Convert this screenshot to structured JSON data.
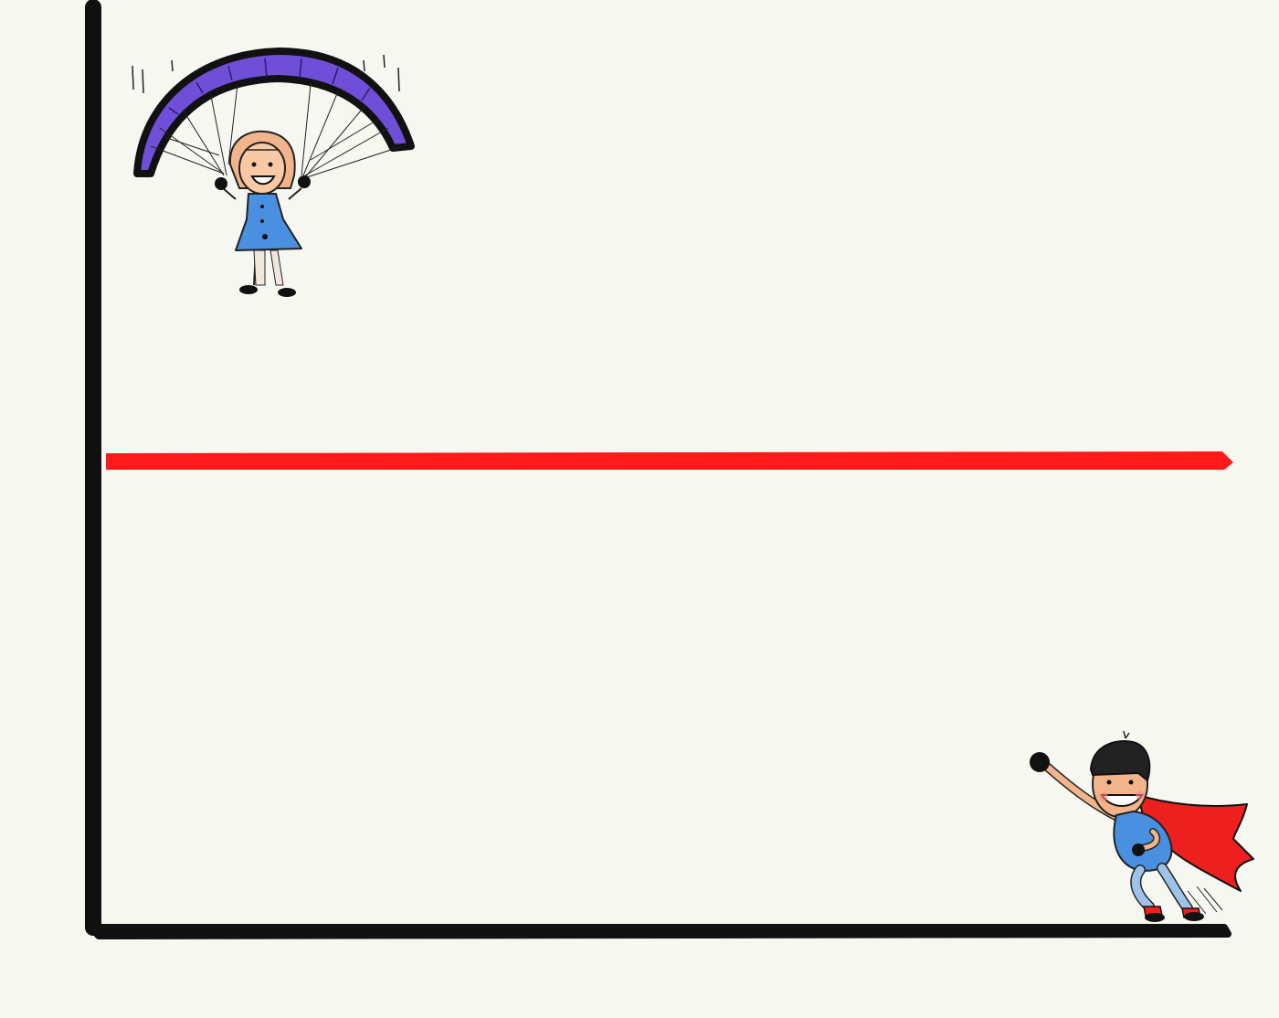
{
  "colors": {
    "background": "#f7f7f2",
    "axis": "#111111",
    "threshold_line": "#ff1a1a",
    "canopy": "#6f4fd8",
    "dress": "#4a90e0",
    "skin": "#f2b48a",
    "cape": "#ee1f1f",
    "hero_suit": "#4a90e0"
  },
  "figures": {
    "top_left": "paragliding-girl",
    "bottom_right": "flying-superhero-boy"
  }
}
